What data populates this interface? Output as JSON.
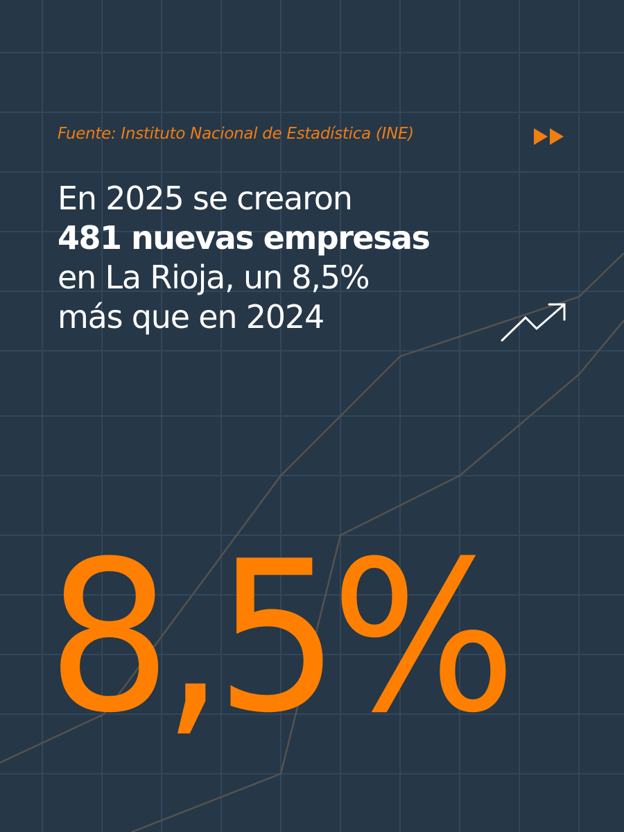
{
  "source": "Fuente: Instituto Nacional de Estadística (INE)",
  "headline": {
    "line1": "En 2025 se crearon",
    "line2_bold": "481 nuevas empresas",
    "line3": "en La Rioja, un 8,5%",
    "line4": "más que en 2024"
  },
  "big_value": "8,5%",
  "icons": {
    "forward": "fast-forward-icon",
    "trend": "trend-up-arrow-icon"
  },
  "colors": {
    "background": "#263748",
    "accent": "#FF8000",
    "source_text": "#F07E12",
    "text": "#ffffff"
  }
}
